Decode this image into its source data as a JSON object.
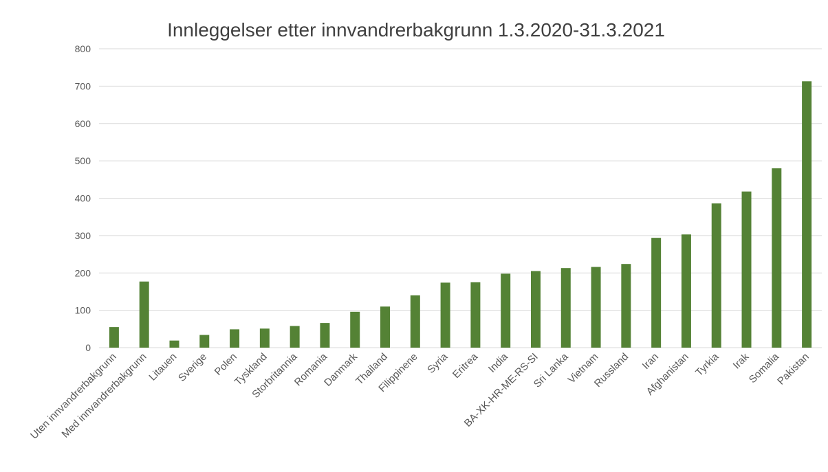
{
  "chart_data": {
    "type": "bar",
    "title": "Innleggelser etter innvandrerbakgrunn 1.3.2020-31.3.2021",
    "xlabel": "",
    "ylabel": "",
    "ylim": [
      0,
      800
    ],
    "yticks": [
      0,
      100,
      200,
      300,
      400,
      500,
      600,
      700,
      800
    ],
    "grid": true,
    "legend": "none",
    "bar_color": "#548235",
    "categories": [
      "Uten innvandrerbakgrunn",
      "Med innvandrerbakgrunn",
      "Litauen",
      "Sverige",
      "Polen",
      "Tyskland",
      "Storbritannia",
      "Romania",
      "Danmark",
      "Thailand",
      "Filippinene",
      "Syria",
      "Eritrea",
      "India",
      "BA-XK-HR-ME-RS-SI",
      "Sri Lanka",
      "Vietnam",
      "Russland",
      "Iran",
      "Afghanistan",
      "Tyrkia",
      "Irak",
      "Somalia",
      "Pakistan"
    ],
    "values": [
      55,
      177,
      19,
      34,
      49,
      51,
      58,
      66,
      96,
      110,
      140,
      174,
      175,
      198,
      205,
      213,
      216,
      224,
      294,
      303,
      386,
      418,
      480,
      713
    ]
  }
}
